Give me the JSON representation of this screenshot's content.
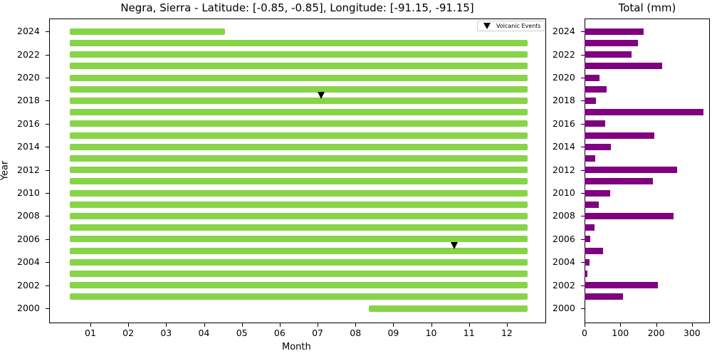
{
  "chart_data": [
    {
      "type": "bar",
      "subtype": "horizontal-range",
      "title": "Negra, Sierra - Latitude: [-0.85, -0.85], Longitude: [-91.15, -91.15]",
      "xlabel": "Month",
      "ylabel": "Year",
      "x_ticks": [
        "01",
        "02",
        "03",
        "04",
        "05",
        "06",
        "07",
        "08",
        "09",
        "10",
        "11",
        "12"
      ],
      "y_ticks": [
        "2000",
        "2002",
        "2004",
        "2006",
        "2008",
        "2010",
        "2012",
        "2014",
        "2016",
        "2018",
        "2020",
        "2022",
        "2024"
      ],
      "bar_color": "#88d448",
      "coverage": [
        {
          "year": 2000,
          "start_month": 8.35,
          "end_month": 12.55
        },
        {
          "year": 2001,
          "start_month": 0.45,
          "end_month": 12.55
        },
        {
          "year": 2002,
          "start_month": 0.45,
          "end_month": 12.55
        },
        {
          "year": 2003,
          "start_month": 0.45,
          "end_month": 12.55
        },
        {
          "year": 2004,
          "start_month": 0.45,
          "end_month": 12.55
        },
        {
          "year": 2005,
          "start_month": 0.45,
          "end_month": 12.55
        },
        {
          "year": 2006,
          "start_month": 0.45,
          "end_month": 12.55
        },
        {
          "year": 2007,
          "start_month": 0.45,
          "end_month": 12.55
        },
        {
          "year": 2008,
          "start_month": 0.45,
          "end_month": 12.55
        },
        {
          "year": 2009,
          "start_month": 0.45,
          "end_month": 12.55
        },
        {
          "year": 2010,
          "start_month": 0.45,
          "end_month": 12.55
        },
        {
          "year": 2011,
          "start_month": 0.45,
          "end_month": 12.55
        },
        {
          "year": 2012,
          "start_month": 0.45,
          "end_month": 12.55
        },
        {
          "year": 2013,
          "start_month": 0.45,
          "end_month": 12.55
        },
        {
          "year": 2014,
          "start_month": 0.45,
          "end_month": 12.55
        },
        {
          "year": 2015,
          "start_month": 0.45,
          "end_month": 12.55
        },
        {
          "year": 2016,
          "start_month": 0.45,
          "end_month": 12.55
        },
        {
          "year": 2017,
          "start_month": 0.45,
          "end_month": 12.55
        },
        {
          "year": 2018,
          "start_month": 0.45,
          "end_month": 12.55
        },
        {
          "year": 2019,
          "start_month": 0.45,
          "end_month": 12.55
        },
        {
          "year": 2020,
          "start_month": 0.45,
          "end_month": 12.55
        },
        {
          "year": 2021,
          "start_month": 0.45,
          "end_month": 12.55
        },
        {
          "year": 2022,
          "start_month": 0.45,
          "end_month": 12.55
        },
        {
          "year": 2023,
          "start_month": 0.45,
          "end_month": 12.55
        },
        {
          "year": 2024,
          "start_month": 0.45,
          "end_month": 4.55
        }
      ],
      "volcanic_events": [
        {
          "year": 2018.5,
          "month": 7.1
        },
        {
          "year": 2005.5,
          "month": 10.6
        }
      ],
      "legend": {
        "position": "upper right",
        "entries": [
          "Volcanic Events"
        ]
      },
      "xlim": [
        -0.6,
        13.3
      ],
      "ylim": [
        1998.8,
        2025.3
      ]
    },
    {
      "type": "bar",
      "orientation": "horizontal",
      "title": "Total (mm)",
      "xlabel": "",
      "ylabel": "",
      "bar_color": "#800080",
      "categories": [
        2001,
        2002,
        2003,
        2004,
        2005,
        2006,
        2007,
        2008,
        2009,
        2010,
        2011,
        2012,
        2013,
        2014,
        2015,
        2016,
        2017,
        2018,
        2019,
        2020,
        2021,
        2022,
        2023,
        2024
      ],
      "values": [
        108,
        205,
        8,
        14,
        52,
        16,
        28,
        248,
        40,
        72,
        190,
        258,
        30,
        74,
        194,
        58,
        332,
        32,
        62,
        42,
        216,
        132,
        150,
        166
      ],
      "x_ticks": [
        "0",
        "100",
        "200",
        "300"
      ],
      "y_ticks": [
        "2000",
        "2002",
        "2004",
        "2006",
        "2008",
        "2010",
        "2012",
        "2014",
        "2016",
        "2018",
        "2020",
        "2022",
        "2024"
      ],
      "xlim": [
        0,
        350
      ],
      "ylim": [
        1998.8,
        2025.3
      ]
    }
  ]
}
